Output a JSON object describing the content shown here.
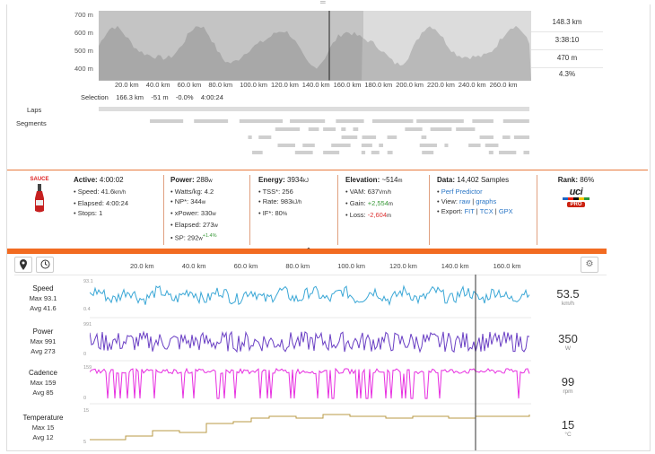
{
  "top_chart": {
    "y_ticks": [
      "700 m",
      "600 m",
      "500 m",
      "400 m"
    ],
    "x_ticks": [
      "20.0 km",
      "40.0 km",
      "60.0 km",
      "80.0 km",
      "100.0 km",
      "120.0 km",
      "140.0 km",
      "160.0 km",
      "180.0 km",
      "200.0 km",
      "220.0 km",
      "240.0 km",
      "260.0 km"
    ],
    "stats": [
      "148.3 km",
      "3:38:10",
      "470 m",
      "4.3%"
    ]
  },
  "selection": {
    "label": "Selection",
    "distance": "166.3 km",
    "elev": "-51 m",
    "pct": "-0.0%",
    "time": "4:00:24"
  },
  "rows": {
    "laps": "Laps",
    "segments": "Segments"
  },
  "logo": "SAUCE",
  "active": {
    "title": "Active:",
    "value": "4:00:02",
    "items": [
      "Speed: 41.6",
      "Elapsed: 4:00:24",
      "Stops: 1"
    ],
    "speed_unit": "km/h"
  },
  "power": {
    "title": "Power:",
    "value": "288",
    "unit": "w",
    "items": [
      "Watts/kg: 4.2",
      "NP*: 344",
      "xPower: 330",
      "Elapsed: 273",
      "SP: 292"
    ],
    "sp_delta": "+1.4%",
    "w": "w"
  },
  "energy": {
    "title": "Energy:",
    "value": "3934",
    "unit": "kJ",
    "items": [
      "TSS*: 256",
      "Rate: 983",
      "IF*: 80"
    ],
    "rate_unit": "kJ/h",
    "pct": "%"
  },
  "elevation": {
    "title": "Elevation:",
    "value": "~514",
    "unit": "m",
    "vam": "VAM: 637",
    "vam_unit": "Vm/h",
    "gain_label": "Gain:",
    "gain": "+2,554",
    "loss_label": "Loss:",
    "loss": "-2,604",
    "m": "m"
  },
  "data": {
    "title": "Data:",
    "value": "14,402 Samples",
    "predictor": "Perf Predictor",
    "view_label": "View:",
    "raw": "raw",
    "graphs": "graphs",
    "export_label": "Export:",
    "fit": "FIT",
    "tcx": "TCX",
    "gpx": "GPX",
    "sep": "|"
  },
  "rank": {
    "title": "Rank:",
    "value": "86%",
    "badge": "uci",
    "badge_sub": "PRO"
  },
  "colors": {
    "accent": "#f26b21",
    "speed": "#3aa7d6",
    "power": "#6a3fc4",
    "cadence": "#e72de0",
    "temp": "#b89a44"
  },
  "lower_x_ticks": [
    "20.0 km",
    "40.0 km",
    "60.0 km",
    "80.0 km",
    "100.0 km",
    "120.0 km",
    "140.0 km",
    "160.0 km"
  ],
  "metrics": [
    {
      "name": "Speed",
      "max": "Max 93.1",
      "avg": "Avg 41.6",
      "value": "53.5",
      "unit": "km/h",
      "ymax": "93.1",
      "ymin": "0.4"
    },
    {
      "name": "Power",
      "max": "Max 991",
      "avg": "Avg 273",
      "value": "350",
      "unit": "W",
      "ymax": "991",
      "ymin": "0"
    },
    {
      "name": "Cadence",
      "max": "Max 159",
      "avg": "Avg 85",
      "value": "99",
      "unit": "rpm",
      "ymax": "159",
      "ymin": "0"
    },
    {
      "name": "Temperature",
      "max": "Max 15",
      "avg": "Avg 12",
      "value": "15",
      "unit": "°C",
      "ymax": "15",
      "ymin": "5"
    }
  ],
  "icons": {
    "grip": "drag-handle-icon",
    "pin": "map-pin-icon",
    "clock": "clock-icon",
    "gear": "gear-icon",
    "chevron": "chevron-up-icon"
  }
}
